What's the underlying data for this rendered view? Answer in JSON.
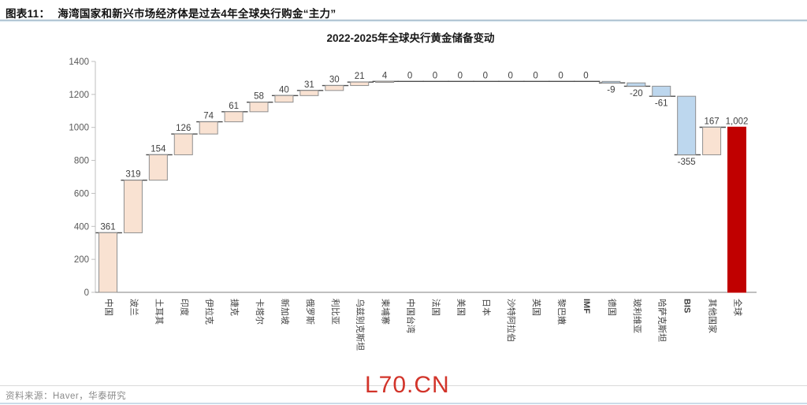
{
  "header": {
    "figure_label": "图表11：",
    "figure_title": "海湾国家和新兴市场经济体是过去4年全球央行购金“主力”"
  },
  "chart_data": {
    "type": "bar",
    "subtype": "waterfall",
    "title": "2022-2025年全球央行黄金储备变动",
    "categories": [
      "中国",
      "波兰",
      "土耳其",
      "印度",
      "伊拉克",
      "捷克",
      "卡塔尔",
      "新加坡",
      "俄罗斯",
      "利比亚",
      "乌兹别克斯坦",
      "柬埔寨",
      "中国台湾",
      "法国",
      "美国",
      "日本",
      "沙特阿拉伯",
      "英国",
      "黎巴嫩",
      "IMF",
      "德国",
      "玻利维亚",
      "哈萨克斯坦",
      "BIS",
      "其他国家",
      "全球"
    ],
    "deltas": [
      361,
      319,
      154,
      126,
      74,
      61,
      58,
      40,
      31,
      30,
      21,
      4,
      0,
      0,
      0,
      0,
      0,
      0,
      0,
      0,
      -9,
      -20,
      -61,
      -355,
      167
    ],
    "total": {
      "category": "全球",
      "value": 1002
    },
    "value_labels": [
      "361",
      "319",
      "154",
      "126",
      "74",
      "61",
      "58",
      "40",
      "31",
      "30",
      "21",
      "4",
      "0",
      "0",
      "0",
      "0",
      "0",
      "0",
      "0",
      "0",
      "-9",
      "-20",
      "-61",
      "-355",
      "167",
      "1,002"
    ],
    "ylim": [
      0,
      1400
    ],
    "ytick_step": 200,
    "grid": false,
    "legend": null,
    "colors": {
      "increase": "#F9E2D2",
      "decrease": "#BDD7EE",
      "total": "#C00000",
      "bar_border": "#8F8F8F",
      "connector": "#4D4D4D",
      "axis": "#BFBFBF",
      "baseline": "#808080",
      "label_text": "#3F3F3F",
      "tick_text": "#595959"
    }
  },
  "footer": {
    "source": "资料来源：Haver，华泰研究",
    "watermark": "L70.CN"
  }
}
